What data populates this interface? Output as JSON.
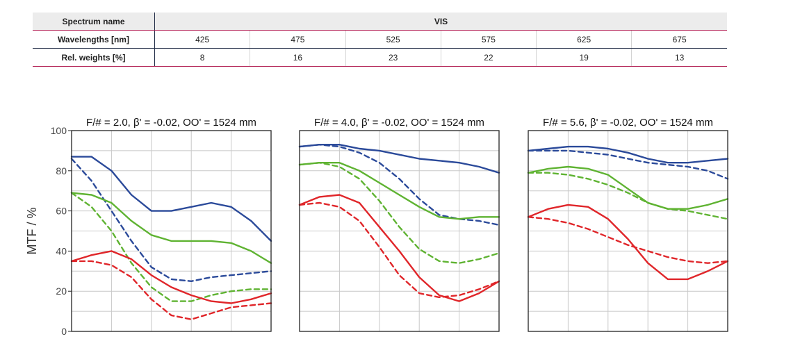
{
  "table": {
    "row_headers": [
      "Spectrum name",
      "Wavelengths [nm]",
      "Rel. weights [%]"
    ],
    "spectrum_name": "VIS",
    "wavelengths": [
      "425",
      "475",
      "525",
      "575",
      "625",
      "675"
    ],
    "weights": [
      "8",
      "16",
      "23",
      "22",
      "19",
      "13"
    ]
  },
  "colors": {
    "blue": "#2b4a9a",
    "green": "#5fb332",
    "red": "#e0262a"
  },
  "chart_data": [
    {
      "type": "line",
      "title": "F/# = 2.0, β' = -0.02, OO' = 1524 mm",
      "ylabel": "MTF / %",
      "ylim": [
        0,
        100
      ],
      "yticks": [
        "0",
        "20",
        "40",
        "60",
        "80",
        "100"
      ],
      "xlim": [
        0,
        100
      ],
      "grid": true,
      "series": [
        {
          "color": "blue",
          "dash": false,
          "x": [
            0,
            10,
            20,
            30,
            40,
            50,
            60,
            70,
            80,
            90,
            100
          ],
          "y": [
            87,
            87,
            80,
            68,
            60,
            60,
            62,
            64,
            62,
            55,
            45
          ]
        },
        {
          "color": "blue",
          "dash": true,
          "x": [
            0,
            10,
            20,
            30,
            40,
            50,
            60,
            70,
            80,
            90,
            100
          ],
          "y": [
            86,
            75,
            60,
            45,
            32,
            26,
            25,
            27,
            28,
            29,
            30
          ]
        },
        {
          "color": "green",
          "dash": false,
          "x": [
            0,
            10,
            20,
            30,
            40,
            50,
            60,
            70,
            80,
            90,
            100
          ],
          "y": [
            69,
            68,
            64,
            55,
            48,
            45,
            45,
            45,
            44,
            40,
            34
          ]
        },
        {
          "color": "green",
          "dash": true,
          "x": [
            0,
            10,
            20,
            30,
            40,
            50,
            60,
            70,
            80,
            90,
            100
          ],
          "y": [
            69,
            62,
            50,
            34,
            22,
            15,
            15,
            18,
            20,
            21,
            21
          ]
        },
        {
          "color": "red",
          "dash": false,
          "x": [
            0,
            10,
            20,
            30,
            40,
            50,
            60,
            70,
            80,
            90,
            100
          ],
          "y": [
            35,
            38,
            40,
            36,
            28,
            22,
            18,
            15,
            14,
            16,
            19
          ]
        },
        {
          "color": "red",
          "dash": true,
          "x": [
            0,
            10,
            20,
            30,
            40,
            50,
            60,
            70,
            80,
            90,
            100
          ],
          "y": [
            35,
            35,
            33,
            27,
            16,
            8,
            6,
            9,
            12,
            13,
            14
          ]
        }
      ]
    },
    {
      "type": "line",
      "title": "F/# = 4.0, β' = -0.02, OO' = 1524 mm",
      "ylim": [
        0,
        100
      ],
      "xlim": [
        0,
        100
      ],
      "grid": true,
      "series": [
        {
          "color": "blue",
          "dash": false,
          "x": [
            0,
            10,
            20,
            30,
            40,
            50,
            60,
            70,
            80,
            90,
            100
          ],
          "y": [
            92,
            93,
            93,
            91,
            90,
            88,
            86,
            85,
            84,
            82,
            79
          ]
        },
        {
          "color": "blue",
          "dash": true,
          "x": [
            0,
            10,
            20,
            30,
            40,
            50,
            60,
            70,
            80,
            90,
            100
          ],
          "y": [
            92,
            93,
            92,
            89,
            84,
            76,
            66,
            58,
            56,
            55,
            53
          ]
        },
        {
          "color": "green",
          "dash": false,
          "x": [
            0,
            10,
            20,
            30,
            40,
            50,
            60,
            70,
            80,
            90,
            100
          ],
          "y": [
            83,
            84,
            84,
            80,
            74,
            68,
            62,
            57,
            56,
            57,
            57
          ]
        },
        {
          "color": "green",
          "dash": true,
          "x": [
            0,
            10,
            20,
            30,
            40,
            50,
            60,
            70,
            80,
            90,
            100
          ],
          "y": [
            83,
            84,
            82,
            76,
            65,
            52,
            41,
            35,
            34,
            36,
            39
          ]
        },
        {
          "color": "red",
          "dash": false,
          "x": [
            0,
            10,
            20,
            30,
            40,
            50,
            60,
            70,
            80,
            90,
            100
          ],
          "y": [
            63,
            67,
            68,
            64,
            52,
            40,
            27,
            18,
            15,
            19,
            25
          ]
        },
        {
          "color": "red",
          "dash": true,
          "x": [
            0,
            10,
            20,
            30,
            40,
            50,
            60,
            70,
            80,
            90,
            100
          ],
          "y": [
            63,
            64,
            62,
            55,
            42,
            28,
            19,
            17,
            18,
            21,
            25
          ]
        }
      ]
    },
    {
      "type": "line",
      "title": "F/# = 5.6, β' = -0.02, OO' = 1524 mm",
      "ylim": [
        0,
        100
      ],
      "xlim": [
        0,
        100
      ],
      "grid": true,
      "series": [
        {
          "color": "blue",
          "dash": false,
          "x": [
            0,
            10,
            20,
            30,
            40,
            50,
            60,
            70,
            80,
            90,
            100
          ],
          "y": [
            90,
            91,
            92,
            92,
            91,
            89,
            86,
            84,
            84,
            85,
            86
          ]
        },
        {
          "color": "blue",
          "dash": true,
          "x": [
            0,
            10,
            20,
            30,
            40,
            50,
            60,
            70,
            80,
            90,
            100
          ],
          "y": [
            90,
            90,
            90,
            89,
            88,
            86,
            84,
            83,
            82,
            80,
            76
          ]
        },
        {
          "color": "green",
          "dash": false,
          "x": [
            0,
            10,
            20,
            30,
            40,
            50,
            60,
            70,
            80,
            90,
            100
          ],
          "y": [
            79,
            81,
            82,
            81,
            78,
            71,
            64,
            61,
            61,
            63,
            66
          ]
        },
        {
          "color": "green",
          "dash": true,
          "x": [
            0,
            10,
            20,
            30,
            40,
            50,
            60,
            70,
            80,
            90,
            100
          ],
          "y": [
            79,
            79,
            78,
            76,
            73,
            69,
            64,
            61,
            60,
            58,
            56
          ]
        },
        {
          "color": "red",
          "dash": false,
          "x": [
            0,
            10,
            20,
            30,
            40,
            50,
            60,
            70,
            80,
            90,
            100
          ],
          "y": [
            57,
            61,
            63,
            62,
            56,
            46,
            34,
            26,
            26,
            30,
            35
          ]
        },
        {
          "color": "red",
          "dash": true,
          "x": [
            0,
            10,
            20,
            30,
            40,
            50,
            60,
            70,
            80,
            90,
            100
          ],
          "y": [
            57,
            56,
            54,
            51,
            47,
            43,
            40,
            37,
            35,
            34,
            35
          ]
        }
      ]
    }
  ]
}
